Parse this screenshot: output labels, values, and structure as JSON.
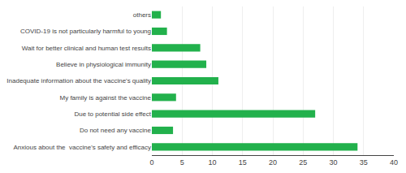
{
  "chart_data": {
    "type": "bar",
    "orientation": "horizontal",
    "categories": [
      "Anxious about the  vaccine's safety and efficacy",
      "Do not need any vaccine",
      "Due to potential side effect",
      "My family is against the vaccine",
      "Inadequate information about the vaccine's quality",
      "Believe in physiological immunity",
      "Wait for better clinical and human test results",
      "COVID-19 is not particularly harmful to young",
      "others"
    ],
    "values": [
      34,
      3.5,
      27,
      4,
      11,
      9,
      8,
      2.5,
      1.5
    ],
    "color": "#22b14c",
    "xlim": [
      0,
      40
    ],
    "xticks": [
      0,
      5,
      10,
      15,
      20,
      25,
      30,
      35,
      40
    ],
    "grid": true
  }
}
